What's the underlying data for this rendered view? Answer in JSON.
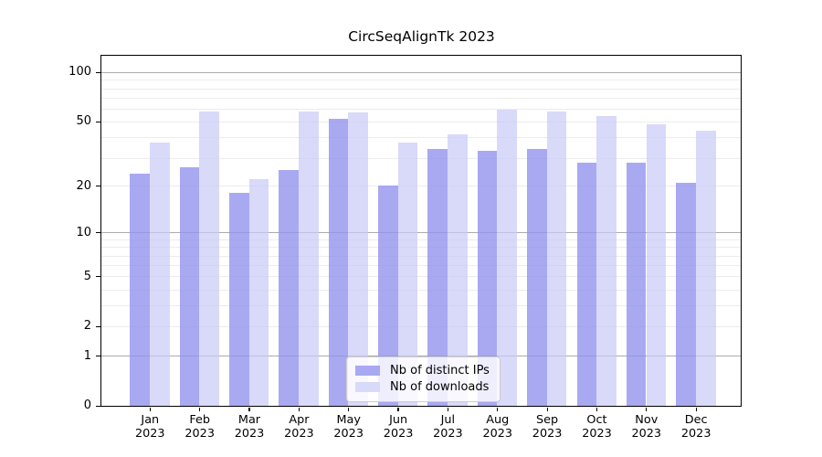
{
  "figure": {
    "title": "CircSeqAlignTk 2023"
  },
  "chart_data": {
    "type": "bar",
    "title": "CircSeqAlignTk 2023",
    "categories": [
      "Jan 2023",
      "Feb 2023",
      "Mar 2023",
      "Apr 2023",
      "May 2023",
      "Jun 2023",
      "Jul 2023",
      "Aug 2023",
      "Sep 2023",
      "Oct 2023",
      "Nov 2023",
      "Dec 2023"
    ],
    "series": [
      {
        "name": "Nb of distinct IPs",
        "key": "distinct-ips",
        "color": "#a9a9f2",
        "values": [
          24,
          26,
          18,
          25,
          52,
          20,
          34,
          33,
          34,
          28,
          28,
          21
        ]
      },
      {
        "name": "Nb of downloads",
        "key": "downloads",
        "color": "#d9d9f9",
        "values": [
          37,
          58,
          22,
          58,
          57,
          37,
          42,
          59,
          58,
          54,
          48,
          44
        ]
      }
    ],
    "xlabel": "",
    "ylabel": "",
    "y_axis": {
      "scale": "log1p",
      "tick_values": [
        0,
        1,
        2,
        5,
        10,
        20,
        50,
        100
      ],
      "major_gridlines": [
        1,
        10,
        100
      ],
      "minor_gridlines": [
        2,
        3,
        4,
        5,
        6,
        7,
        8,
        9,
        20,
        30,
        40,
        50,
        60,
        70,
        80,
        90
      ],
      "ylim": [
        0,
        126
      ]
    },
    "grid": "horizontal",
    "legend_position": "bottom-center"
  }
}
